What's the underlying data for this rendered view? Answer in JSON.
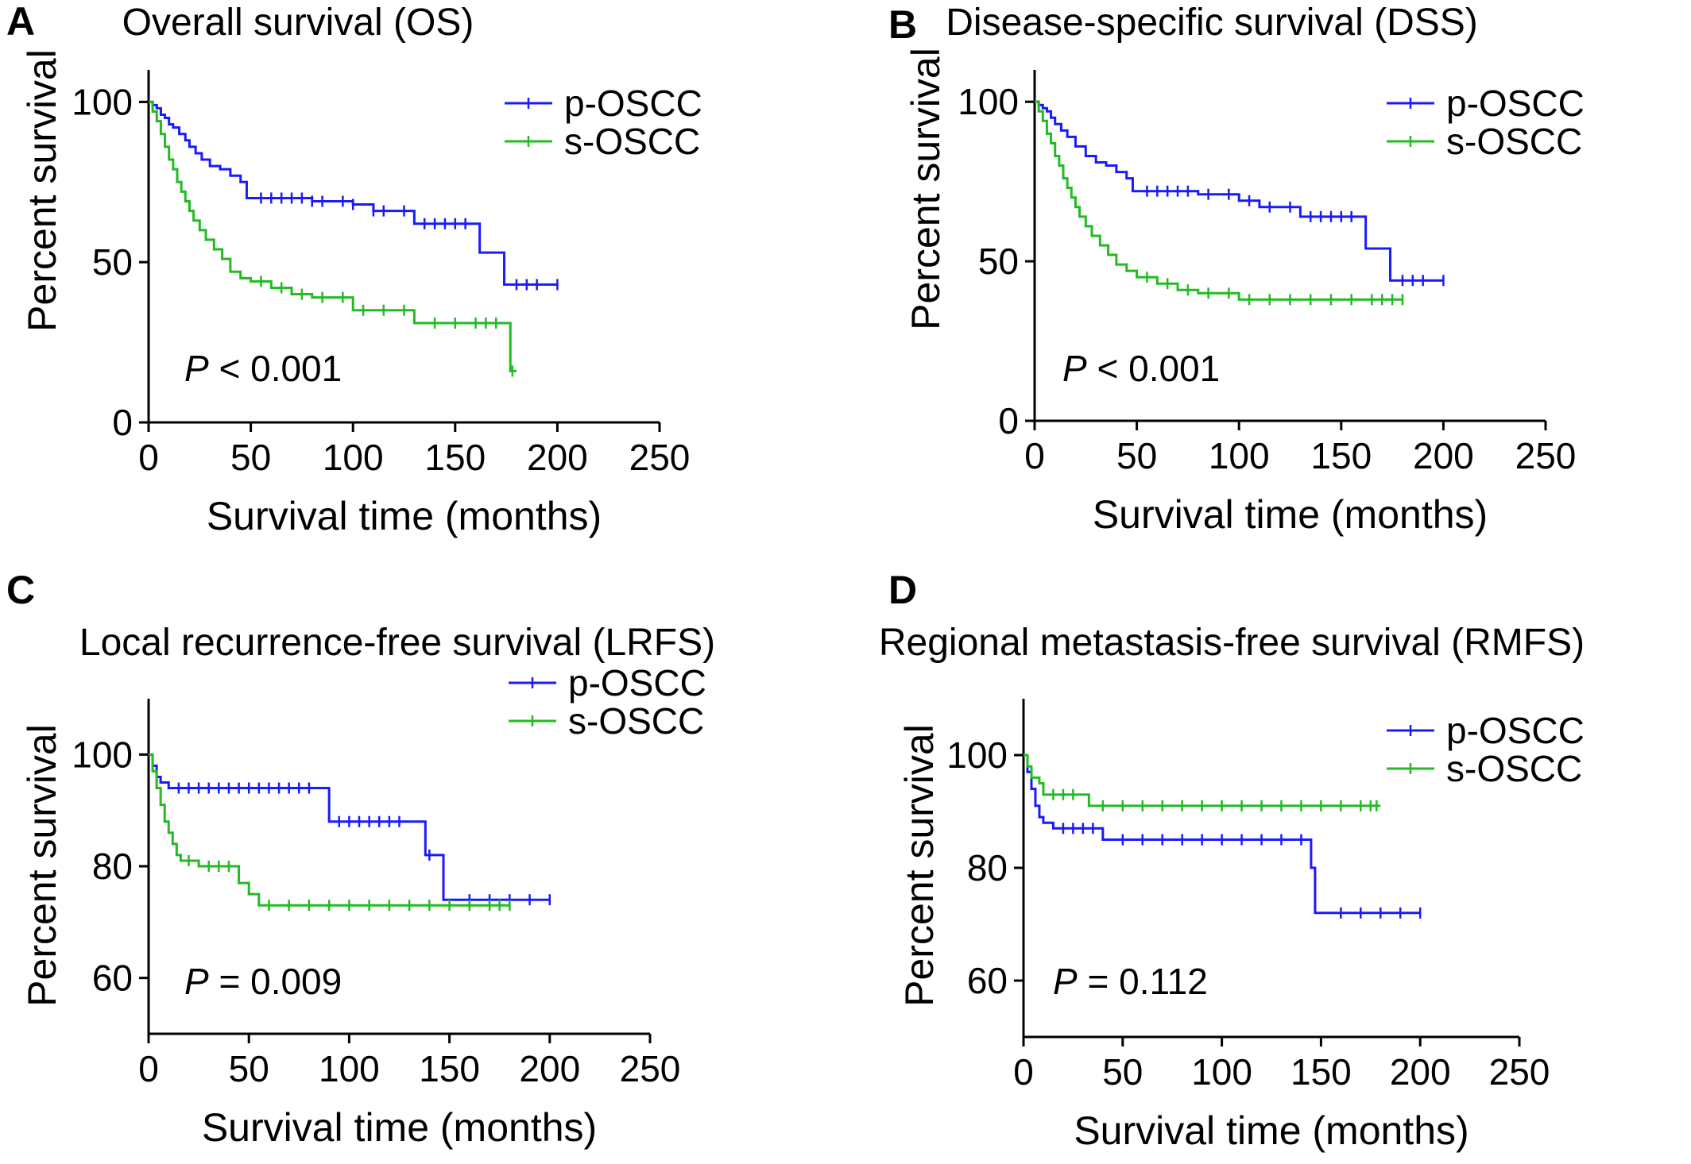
{
  "chart_data": [
    {
      "panel": "A",
      "type": "line",
      "title": "Overall survival (OS)",
      "xlabel": "Survival time (months)",
      "ylabel": "Percent survival",
      "xlim": [
        0,
        250
      ],
      "ylim": [
        0,
        110
      ],
      "xticks": [
        0,
        50,
        100,
        150,
        200,
        250
      ],
      "yticks": [
        0,
        50,
        100
      ],
      "legend_position": "top-right",
      "annotation": {
        "p_symbol": "P",
        "p_text": "< 0.001"
      },
      "series": [
        {
          "name": "p-OSCC",
          "color": "#1a1aff",
          "x": [
            0,
            2,
            4,
            6,
            8,
            10,
            12,
            15,
            18,
            20,
            23,
            26,
            30,
            35,
            40,
            45,
            48,
            60,
            80,
            100,
            110,
            120,
            130,
            140,
            160,
            162,
            172,
            174,
            200
          ],
          "y": [
            100,
            99,
            98,
            96,
            95,
            93,
            92,
            90,
            88,
            86,
            84,
            82,
            80,
            79,
            77,
            75,
            70,
            70,
            69,
            68,
            66,
            66,
            62,
            62,
            62,
            53,
            53,
            43,
            43
          ],
          "censors": [
            55,
            60,
            65,
            70,
            75,
            80,
            85,
            95,
            100,
            110,
            115,
            125,
            135,
            140,
            145,
            150,
            155,
            180,
            185,
            190,
            200
          ]
        },
        {
          "name": "s-OSCC",
          "color": "#22bb22",
          "x": [
            0,
            2,
            4,
            6,
            8,
            10,
            12,
            14,
            16,
            18,
            20,
            22,
            25,
            28,
            32,
            36,
            40,
            45,
            50,
            60,
            70,
            80,
            100,
            110,
            120,
            130,
            175,
            177,
            180
          ],
          "y": [
            100,
            97,
            94,
            90,
            86,
            82,
            79,
            75,
            72,
            69,
            66,
            63,
            60,
            57,
            54,
            51,
            47,
            45,
            44,
            42,
            40,
            39,
            35,
            35,
            35,
            31,
            31,
            16,
            16
          ],
          "censors": [
            55,
            65,
            75,
            85,
            95,
            105,
            115,
            125,
            140,
            150,
            160,
            165,
            170,
            178
          ]
        }
      ]
    },
    {
      "panel": "B",
      "type": "line",
      "title": "Disease-specific survival (DSS)",
      "xlabel": "Survival time (months)",
      "ylabel": "Percent survival",
      "xlim": [
        0,
        250
      ],
      "ylim": [
        0,
        110
      ],
      "xticks": [
        0,
        50,
        100,
        150,
        200,
        250
      ],
      "yticks": [
        0,
        50,
        100
      ],
      "legend_position": "top-right",
      "annotation": {
        "p_symbol": "P",
        "p_text": "< 0.001"
      },
      "series": [
        {
          "name": "p-OSCC",
          "color": "#1a1aff",
          "x": [
            0,
            2,
            4,
            6,
            8,
            10,
            13,
            16,
            20,
            25,
            30,
            35,
            40,
            45,
            48,
            60,
            80,
            100,
            110,
            120,
            130,
            140,
            160,
            162,
            172,
            174,
            200
          ],
          "y": [
            100,
            99,
            98,
            97,
            95,
            93,
            91,
            89,
            86,
            83,
            81,
            80,
            78,
            76,
            72,
            72,
            71,
            69,
            67,
            67,
            64,
            64,
            64,
            54,
            54,
            44,
            44
          ],
          "censors": [
            55,
            60,
            65,
            70,
            75,
            85,
            95,
            105,
            115,
            125,
            135,
            140,
            145,
            150,
            155,
            180,
            185,
            190,
            200
          ]
        },
        {
          "name": "s-OSCC",
          "color": "#22bb22",
          "x": [
            0,
            2,
            4,
            6,
            8,
            10,
            12,
            14,
            16,
            18,
            20,
            22,
            25,
            28,
            32,
            36,
            40,
            45,
            50,
            60,
            70,
            80,
            100,
            180
          ],
          "y": [
            100,
            97,
            94,
            90,
            87,
            83,
            80,
            76,
            73,
            70,
            67,
            64,
            61,
            58,
            55,
            52,
            49,
            47,
            45,
            43,
            41,
            40,
            38,
            38
          ],
          "censors": [
            55,
            65,
            75,
            85,
            95,
            105,
            115,
            125,
            135,
            145,
            155,
            165,
            170,
            175,
            180
          ]
        }
      ]
    },
    {
      "panel": "C",
      "type": "line",
      "title": "Local recurrence-free survival (LRFS)",
      "xlabel": "Survival time (months)",
      "ylabel": "Percent survival",
      "xlim": [
        0,
        250
      ],
      "ylim": [
        50,
        110
      ],
      "xticks": [
        0,
        50,
        100,
        150,
        200,
        250
      ],
      "yticks": [
        60,
        80,
        100
      ],
      "legend_position": "top-right",
      "annotation": {
        "p_symbol": "P",
        "p_text": "= 0.009"
      },
      "series": [
        {
          "name": "p-OSCC",
          "color": "#1a1aff",
          "x": [
            0,
            2,
            4,
            6,
            10,
            85,
            90,
            135,
            138,
            145,
            147,
            200
          ],
          "y": [
            100,
            98,
            96,
            95,
            94,
            94,
            88,
            88,
            82,
            82,
            74,
            74
          ],
          "censors": [
            15,
            20,
            25,
            30,
            35,
            40,
            45,
            50,
            55,
            60,
            65,
            70,
            75,
            80,
            95,
            100,
            105,
            110,
            115,
            120,
            125,
            140,
            160,
            170,
            180,
            190,
            200
          ]
        },
        {
          "name": "s-OSCC",
          "color": "#22bb22",
          "x": [
            0,
            2,
            4,
            6,
            8,
            10,
            12,
            14,
            16,
            20,
            25,
            30,
            40,
            45,
            50,
            55,
            180
          ],
          "y": [
            100,
            97,
            94,
            91,
            88,
            86,
            84,
            82,
            81,
            81,
            80,
            80,
            80,
            77,
            75,
            73,
            73
          ],
          "censors": [
            20,
            30,
            35,
            40,
            60,
            70,
            80,
            90,
            100,
            110,
            120,
            130,
            140,
            150,
            160,
            170,
            175,
            180
          ]
        }
      ]
    },
    {
      "panel": "D",
      "type": "line",
      "title": "Regional metastasis-free survival (RMFS)",
      "xlabel": "Survival time (months)",
      "ylabel": "Percent survival",
      "xlim": [
        0,
        250
      ],
      "ylim": [
        50,
        110
      ],
      "xticks": [
        0,
        50,
        100,
        150,
        200,
        250
      ],
      "yticks": [
        60,
        80,
        100
      ],
      "legend_position": "top-right",
      "annotation": {
        "p_symbol": "P",
        "p_text": "= 0.112"
      },
      "series": [
        {
          "name": "p-OSCC",
          "color": "#1a1aff",
          "x": [
            0,
            2,
            4,
            6,
            8,
            10,
            15,
            40,
            135,
            145,
            147,
            200
          ],
          "y": [
            100,
            97,
            94,
            91,
            89,
            88,
            87,
            85,
            85,
            80,
            72,
            72
          ],
          "censors": [
            20,
            25,
            30,
            35,
            50,
            60,
            70,
            80,
            90,
            100,
            110,
            120,
            130,
            140,
            160,
            170,
            180,
            190,
            200
          ]
        },
        {
          "name": "s-OSCC",
          "color": "#22bb22",
          "x": [
            0,
            2,
            4,
            8,
            10,
            30,
            33,
            180
          ],
          "y": [
            100,
            98,
            96,
            95,
            93,
            93,
            91,
            91
          ],
          "censors": [
            15,
            20,
            25,
            40,
            50,
            60,
            70,
            80,
            90,
            100,
            110,
            120,
            130,
            140,
            150,
            160,
            170,
            175,
            178
          ]
        }
      ]
    }
  ]
}
